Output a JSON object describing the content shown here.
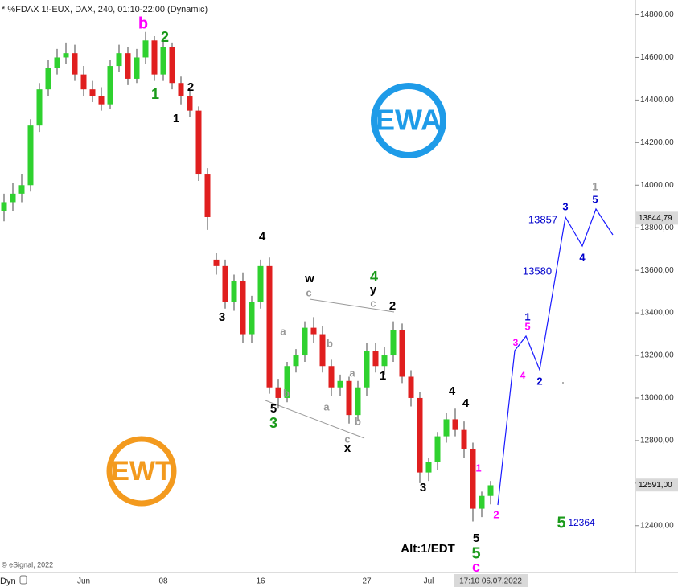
{
  "chart_data": {
    "type": "candlestick",
    "title": "* %FDAX 1!-EUX, DAX, 240, 01:10-22:00 (Dynamic)",
    "footer": "© eSignal, 2022",
    "footer_tag": "Dyn",
    "up_color": "#2fd12f",
    "down_color": "#e01f1f",
    "ylim": [
      12180,
      14870
    ],
    "yticks": [
      {
        "value": 12400,
        "label": "12400,00"
      },
      {
        "value": 12600,
        "label": "12600,00"
      },
      {
        "value": 12800,
        "label": "12800,00"
      },
      {
        "value": 13000,
        "label": "13000,00"
      },
      {
        "value": 13200,
        "label": "13200,00"
      },
      {
        "value": 13400,
        "label": "13400,00"
      },
      {
        "value": 13600,
        "label": "13600,00"
      },
      {
        "value": 13800,
        "label": "13800,00"
      },
      {
        "value": 14000,
        "label": "14000,00"
      },
      {
        "value": 14200,
        "label": "14200,00"
      },
      {
        "value": 14400,
        "label": "14400,00"
      },
      {
        "value": 14600,
        "label": "14600,00"
      },
      {
        "value": 14800,
        "label": "14800,00"
      }
    ],
    "price_markers": [
      {
        "value": 13844.79,
        "label": "13844,79"
      },
      {
        "value": 12591,
        "label": "12591,00"
      }
    ],
    "categories": [
      null,
      null,
      null,
      null,
      null,
      null,
      null,
      null,
      null,
      "Jun",
      null,
      null,
      null,
      null,
      null,
      null,
      null,
      null,
      "08",
      null,
      null,
      null,
      null,
      null,
      null,
      null,
      null,
      null,
      null,
      "16",
      null,
      null,
      null,
      null,
      null,
      null,
      null,
      null,
      null,
      null,
      null,
      "27",
      null,
      null,
      null,
      null,
      null,
      null,
      "Jul",
      null,
      null,
      null,
      null,
      null,
      null,
      "17:10 06.07.2022"
    ],
    "open": [
      13880,
      13920,
      13960,
      14000,
      14280,
      14450,
      14550,
      14600,
      14620,
      14520,
      14450,
      14420,
      14380,
      14560,
      14620,
      14500,
      14600,
      14680,
      14520,
      14650,
      14480,
      14420,
      14350,
      14050,
      13650,
      13620,
      13450,
      13550,
      13300,
      13450,
      13620,
      13050,
      13000,
      13150,
      13200,
      13330,
      13300,
      13150,
      13050,
      13080,
      12920,
      13050,
      13220,
      13150,
      13200,
      13320,
      13100,
      13000,
      12650,
      12700,
      12820,
      12900,
      12850,
      12760,
      12480,
      12540
    ],
    "high": [
      13960,
      14010,
      14050,
      14310,
      14480,
      14590,
      14640,
      14670,
      14660,
      14560,
      14490,
      14460,
      14590,
      14660,
      14650,
      14640,
      14720,
      14700,
      14680,
      14670,
      14510,
      14450,
      14370,
      14080,
      13680,
      13650,
      13580,
      13590,
      13480,
      13650,
      13660,
      13090,
      13170,
      13230,
      13360,
      13380,
      13340,
      13180,
      13110,
      13100,
      13080,
      13260,
      13260,
      13240,
      13360,
      13350,
      13130,
      13030,
      12720,
      12840,
      12930,
      12950,
      12890,
      12790,
      12560,
      12610
    ],
    "low": [
      13830,
      13880,
      13920,
      13970,
      14250,
      14420,
      14520,
      14570,
      14490,
      14420,
      14390,
      14350,
      14360,
      14530,
      14470,
      14480,
      14570,
      14490,
      14490,
      14450,
      14380,
      14320,
      14020,
      13790,
      13580,
      13420,
      13410,
      13260,
      13260,
      13420,
      13020,
      12950,
      12980,
      13120,
      13170,
      13260,
      13120,
      13010,
      13010,
      12880,
      12890,
      13010,
      13120,
      13110,
      13170,
      13070,
      12960,
      12600,
      12610,
      12660,
      12790,
      12820,
      12720,
      12420,
      12440,
      12500
    ],
    "close": [
      13920,
      13960,
      14000,
      14280,
      14450,
      14550,
      14600,
      14620,
      14520,
      14450,
      14420,
      14380,
      14560,
      14620,
      14500,
      14600,
      14680,
      14520,
      14650,
      14480,
      14420,
      14350,
      14050,
      13850,
      13620,
      13450,
      13550,
      13300,
      13450,
      13620,
      13050,
      13000,
      13150,
      13200,
      13330,
      13300,
      13150,
      13050,
      13080,
      12920,
      13050,
      13220,
      13150,
      13200,
      13320,
      13100,
      13000,
      12650,
      12700,
      12820,
      12900,
      12850,
      12760,
      12480,
      12540,
      12590
    ],
    "logos": [
      "EWA",
      "EWT"
    ],
    "annotations": [
      {
        "text": "b",
        "color": "#ff00ff"
      },
      {
        "text": "2",
        "color": "#1a9a1a"
      },
      {
        "text": "1",
        "color": "#1a9a1a"
      },
      {
        "text": "2",
        "color": "#000000"
      },
      {
        "text": "1",
        "color": "#000000"
      },
      {
        "text": "4",
        "color": "#000000"
      },
      {
        "text": "3",
        "color": "#000000"
      },
      {
        "text": "5",
        "color": "#000000"
      },
      {
        "text": "3",
        "color": "#1a9a1a"
      },
      {
        "text": "b",
        "color": "#999999"
      },
      {
        "text": "a",
        "color": "#999999"
      },
      {
        "text": "w",
        "color": "#000000"
      },
      {
        "text": "c",
        "color": "#999999"
      },
      {
        "text": "b",
        "color": "#999999"
      },
      {
        "text": "a",
        "color": "#999999"
      },
      {
        "text": "a",
        "color": "#999999"
      },
      {
        "text": "b",
        "color": "#999999"
      },
      {
        "text": "c",
        "color": "#999999"
      },
      {
        "text": "x",
        "color": "#000000"
      },
      {
        "text": "4",
        "color": "#1a9a1a"
      },
      {
        "text": "y",
        "color": "#000000"
      },
      {
        "text": "c",
        "color": "#999999"
      },
      {
        "text": "2",
        "color": "#000000"
      },
      {
        "text": "1",
        "color": "#000000"
      },
      {
        "text": "4",
        "color": "#000000"
      },
      {
        "text": "4",
        "color": "#000000"
      },
      {
        "text": "3",
        "color": "#000000"
      },
      {
        "text": "1",
        "color": "#ff00ff"
      },
      {
        "text": "2",
        "color": "#ff00ff"
      },
      {
        "text": "5",
        "color": "#000000"
      },
      {
        "text": "5",
        "color": "#1a9a1a"
      },
      {
        "text": "c",
        "color": "#ff00ff"
      },
      {
        "text": "Alt:1/EDT",
        "color": "#000000"
      },
      {
        "text": "3",
        "color": "#ff00ff"
      },
      {
        "text": "4",
        "color": "#ff00ff"
      },
      {
        "text": "1",
        "color": "#0000cc"
      },
      {
        "text": "5",
        "color": "#ff00ff"
      },
      {
        "text": "2",
        "color": "#0000cc"
      },
      {
        "text": "13580",
        "color": "#0000cc"
      },
      {
        "text": "13857",
        "color": "#0000cc"
      },
      {
        "text": "3",
        "color": "#0000cc"
      },
      {
        "text": "4",
        "color": "#0000cc"
      },
      {
        "text": "1",
        "color": "#999999"
      },
      {
        "text": "5",
        "color": "#0000cc"
      },
      {
        "text": "5",
        "color": "#1a9a1a"
      },
      {
        "text": "12364",
        "color": "#0000cc"
      }
    ]
  }
}
